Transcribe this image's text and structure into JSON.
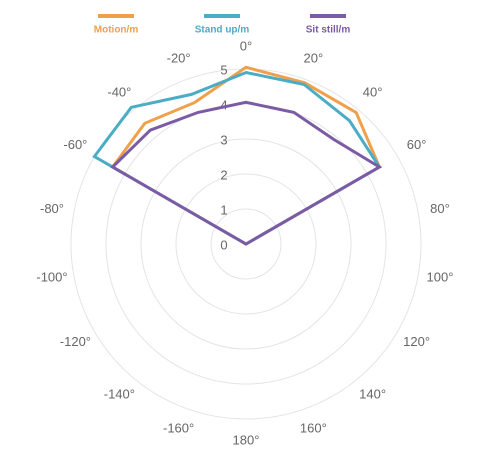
{
  "chart_data": {
    "type": "radar",
    "angles": [
      {
        "value": 0,
        "label": "0°"
      },
      {
        "value": 20,
        "label": "20°"
      },
      {
        "value": 40,
        "label": "40°"
      },
      {
        "value": 60,
        "label": "60°"
      },
      {
        "value": 80,
        "label": "80°"
      },
      {
        "value": 100,
        "label": "100°"
      },
      {
        "value": 120,
        "label": "120°"
      },
      {
        "value": 140,
        "label": "140°"
      },
      {
        "value": 160,
        "label": "160°"
      },
      {
        "value": 180,
        "label": "180°"
      },
      {
        "value": -160,
        "label": "-160°"
      },
      {
        "value": -140,
        "label": "-140°"
      },
      {
        "value": -120,
        "label": "-120°"
      },
      {
        "value": -100,
        "label": "-100°"
      },
      {
        "value": -80,
        "label": "-80°"
      },
      {
        "value": -60,
        "label": "-60°"
      },
      {
        "value": -40,
        "label": "-40°"
      },
      {
        "value": -20,
        "label": "-20°"
      }
    ],
    "series": [
      {
        "name": "Motion/m",
        "color": "#f0a04b",
        "values": [
          5.05,
          4.9,
          4.9,
          4.4,
          0,
          0,
          0,
          0,
          0,
          0,
          0,
          0,
          0,
          0,
          0,
          4.4,
          4.5,
          4.3
        ]
      },
      {
        "name": "Stand up/m",
        "color": "#4bacc6",
        "values": [
          4.9,
          4.85,
          4.6,
          4.4,
          0,
          0,
          0,
          0,
          0,
          0,
          0,
          0,
          0,
          0,
          0,
          5.0,
          5.1,
          4.55
        ]
      },
      {
        "name": "Sit still/m",
        "color": "#7b5aa6",
        "values": [
          4.05,
          4.0,
          3.9,
          4.4,
          0,
          0,
          0,
          0,
          0,
          0,
          0,
          0,
          0,
          0,
          0,
          4.4,
          4.25,
          4.0
        ]
      }
    ],
    "rlim": [
      0,
      5
    ],
    "rticks": [
      0,
      1,
      2,
      3,
      4,
      5
    ],
    "grid": true
  }
}
